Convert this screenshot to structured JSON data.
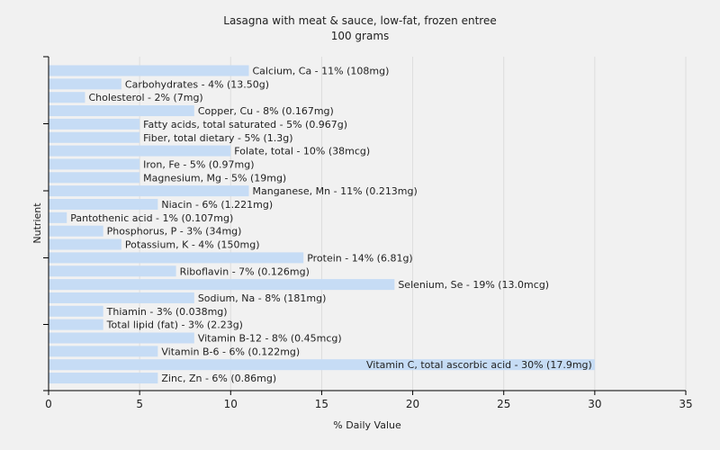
{
  "chart_data": {
    "type": "bar",
    "orientation": "horizontal",
    "title": "Lasagna with meat & sauce, low-fat, frozen entree",
    "subtitle": "100 grams",
    "xlabel": "% Daily Value",
    "ylabel": "Nutrient",
    "xlim": [
      0,
      35
    ],
    "xticks": [
      0,
      5,
      10,
      15,
      20,
      25,
      30,
      35
    ],
    "grid": true,
    "bar_color": "#c6dcf5",
    "items": [
      {
        "value": 11,
        "label": "Calcium, Ca - 11% (108mg)"
      },
      {
        "value": 4,
        "label": "Carbohydrates - 4% (13.50g)"
      },
      {
        "value": 2,
        "label": "Cholesterol - 2% (7mg)"
      },
      {
        "value": 8,
        "label": "Copper, Cu - 8% (0.167mg)"
      },
      {
        "value": 5,
        "label": "Fatty acids, total saturated - 5% (0.967g)"
      },
      {
        "value": 5,
        "label": "Fiber, total dietary - 5% (1.3g)"
      },
      {
        "value": 10,
        "label": "Folate, total - 10% (38mcg)"
      },
      {
        "value": 5,
        "label": "Iron, Fe - 5% (0.97mg)"
      },
      {
        "value": 5,
        "label": "Magnesium, Mg - 5% (19mg)"
      },
      {
        "value": 11,
        "label": "Manganese, Mn - 11% (0.213mg)"
      },
      {
        "value": 6,
        "label": "Niacin - 6% (1.221mg)"
      },
      {
        "value": 1,
        "label": "Pantothenic acid - 1% (0.107mg)"
      },
      {
        "value": 3,
        "label": "Phosphorus, P - 3% (34mg)"
      },
      {
        "value": 4,
        "label": "Potassium, K - 4% (150mg)"
      },
      {
        "value": 14,
        "label": "Protein - 14% (6.81g)"
      },
      {
        "value": 7,
        "label": "Riboflavin - 7% (0.126mg)"
      },
      {
        "value": 19,
        "label": "Selenium, Se - 19% (13.0mcg)"
      },
      {
        "value": 8,
        "label": "Sodium, Na - 8% (181mg)"
      },
      {
        "value": 3,
        "label": "Thiamin - 3% (0.038mg)"
      },
      {
        "value": 3,
        "label": "Total lipid (fat) - 3% (2.23g)"
      },
      {
        "value": 8,
        "label": "Vitamin B-12 - 8% (0.45mcg)"
      },
      {
        "value": 6,
        "label": "Vitamin B-6 - 6% (0.122mg)"
      },
      {
        "value": 30,
        "label": "Vitamin C, total ascorbic acid - 30% (17.9mg)"
      },
      {
        "value": 6,
        "label": "Zinc, Zn - 6% (0.86mg)"
      }
    ]
  }
}
